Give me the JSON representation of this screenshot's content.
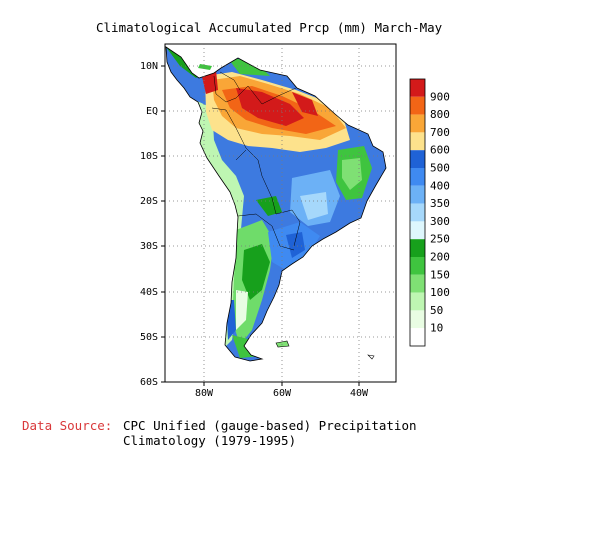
{
  "title": "Climatological Accumulated Prcp (mm) March-May",
  "map": {
    "lat_labels": [
      "10N",
      "EQ",
      "10S",
      "20S",
      "30S",
      "40S",
      "50S",
      "60S"
    ],
    "lon_labels": [
      "80W",
      "60W",
      "40W"
    ],
    "grid": "dotted",
    "land_base_color": "#3d7ae0",
    "outline_color": "#000000"
  },
  "legend": {
    "labels": [
      "900",
      "800",
      "700",
      "600",
      "500",
      "400",
      "350",
      "300",
      "250",
      "200",
      "150",
      "100",
      "50",
      "10"
    ],
    "colors": [
      "#d31a1a",
      "#f26516",
      "#f9a637",
      "#fde28c",
      "#1f62d6",
      "#3f8af1",
      "#6cb1f6",
      "#a6d8fb",
      "#def7fd",
      "#17a01c",
      "#3fc43f",
      "#7fe074",
      "#bef6b2",
      "#e9fde3",
      "#ffffff"
    ]
  },
  "source": {
    "label": "Data Source:",
    "line1": "CPC Unified (gauge-based) Precipitation",
    "line2": "Climatology (1979-1995)"
  }
}
